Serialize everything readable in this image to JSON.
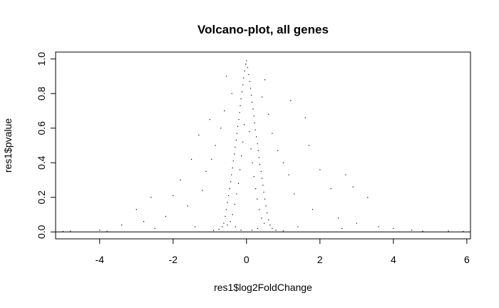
{
  "chart_data": {
    "type": "scatter",
    "title": "Volcano-plot, all genes",
    "xlabel": "res1$log2FoldChange",
    "ylabel": "res1$pvalue",
    "xlim": [
      -5.2,
      6.1
    ],
    "ylim": [
      -0.04,
      1.04
    ],
    "xticks": [
      -4,
      -2,
      0,
      2,
      4,
      6
    ],
    "yticks": [
      0.0,
      0.2,
      0.4,
      0.6,
      0.8,
      1.0
    ],
    "xtick_labels": [
      "-4",
      "-2",
      "0",
      "2",
      "4",
      "6"
    ],
    "ytick_labels": [
      "0.0",
      "0.2",
      "0.4",
      "0.6",
      "0.8",
      "1.0"
    ],
    "grid": false,
    "legend": "none",
    "reference_line": {
      "y": 0
    },
    "point_color": "#000000",
    "series": [
      {
        "points": [
          [
            0.0,
            0.99
          ],
          [
            -0.02,
            0.97
          ],
          [
            0.03,
            0.95
          ],
          [
            -0.05,
            0.93
          ],
          [
            0.06,
            0.91
          ],
          [
            -0.08,
            0.89
          ],
          [
            0.09,
            0.87
          ],
          [
            -0.1,
            0.85
          ],
          [
            0.11,
            0.83
          ],
          [
            -0.12,
            0.81
          ],
          [
            0.13,
            0.79
          ],
          [
            -0.15,
            0.77
          ],
          [
            0.15,
            0.75
          ],
          [
            -0.17,
            0.73
          ],
          [
            0.18,
            0.71
          ],
          [
            -0.19,
            0.69
          ],
          [
            0.2,
            0.67
          ],
          [
            -0.21,
            0.65
          ],
          [
            0.22,
            0.63
          ],
          [
            -0.24,
            0.61
          ],
          [
            0.24,
            0.59
          ],
          [
            -0.26,
            0.57
          ],
          [
            0.27,
            0.55
          ],
          [
            -0.28,
            0.53
          ],
          [
            0.3,
            0.51
          ],
          [
            -0.31,
            0.49
          ],
          [
            0.32,
            0.47
          ],
          [
            -0.33,
            0.45
          ],
          [
            0.34,
            0.43
          ],
          [
            -0.36,
            0.41
          ],
          [
            0.36,
            0.39
          ],
          [
            -0.38,
            0.37
          ],
          [
            0.4,
            0.35
          ],
          [
            -0.41,
            0.33
          ],
          [
            0.42,
            0.31
          ],
          [
            -0.43,
            0.29
          ],
          [
            0.45,
            0.27
          ],
          [
            -0.46,
            0.25
          ],
          [
            0.47,
            0.23
          ],
          [
            -0.49,
            0.21
          ],
          [
            0.5,
            0.19
          ],
          [
            -0.52,
            0.17
          ],
          [
            0.53,
            0.15
          ],
          [
            -0.55,
            0.13
          ],
          [
            0.56,
            0.11
          ],
          [
            -0.58,
            0.09
          ],
          [
            0.6,
            0.07
          ],
          [
            -0.62,
            0.05
          ],
          [
            0.64,
            0.04
          ],
          [
            -0.66,
            0.03
          ],
          [
            0.7,
            0.02
          ],
          [
            -0.75,
            0.015
          ],
          [
            0.8,
            0.01
          ],
          [
            -0.9,
            0.008
          ],
          [
            1.0,
            0.006
          ],
          [
            -0.06,
            0.62
          ],
          [
            0.08,
            0.58
          ],
          [
            -0.1,
            0.52
          ],
          [
            0.12,
            0.48
          ],
          [
            -0.14,
            0.44
          ],
          [
            0.16,
            0.4
          ],
          [
            -0.18,
            0.36
          ],
          [
            0.2,
            0.32
          ],
          [
            -0.22,
            0.28
          ],
          [
            0.25,
            0.25
          ],
          [
            -0.27,
            0.22
          ],
          [
            0.29,
            0.19
          ],
          [
            -0.32,
            0.16
          ],
          [
            0.35,
            0.13
          ],
          [
            -0.38,
            0.1
          ],
          [
            0.41,
            0.08
          ],
          [
            -0.44,
            0.06
          ],
          [
            0.48,
            0.05
          ],
          [
            -0.52,
            0.04
          ],
          [
            -0.55,
            0.9
          ],
          [
            0.5,
            0.88
          ],
          [
            -0.4,
            0.8
          ],
          [
            0.42,
            0.78
          ],
          [
            -0.6,
            0.7
          ],
          [
            0.6,
            0.68
          ],
          [
            -0.7,
            0.6
          ],
          [
            0.7,
            0.57
          ],
          [
            -0.85,
            0.5
          ],
          [
            0.85,
            0.47
          ],
          [
            -0.95,
            0.42
          ],
          [
            1.0,
            0.4
          ],
          [
            -1.1,
            0.35
          ],
          [
            1.15,
            0.33
          ],
          [
            1.2,
            0.76
          ],
          [
            1.6,
            0.66
          ],
          [
            -1.3,
            0.56
          ],
          [
            -1.0,
            0.65
          ],
          [
            1.7,
            0.5
          ],
          [
            -1.5,
            0.42
          ],
          [
            -1.8,
            0.3
          ],
          [
            2.0,
            0.36
          ],
          [
            -2.0,
            0.21
          ],
          [
            2.3,
            0.25
          ],
          [
            -2.6,
            0.2
          ],
          [
            2.7,
            0.33
          ],
          [
            -3.0,
            0.13
          ],
          [
            3.3,
            0.2
          ],
          [
            2.9,
            0.26
          ],
          [
            -1.2,
            0.24
          ],
          [
            1.3,
            0.22
          ],
          [
            -1.6,
            0.15
          ],
          [
            1.8,
            0.13
          ],
          [
            -2.2,
            0.09
          ],
          [
            2.5,
            0.08
          ],
          [
            -2.8,
            0.06
          ],
          [
            3.0,
            0.05
          ],
          [
            3.6,
            0.03
          ],
          [
            -3.4,
            0.04
          ],
          [
            4.0,
            0.02
          ],
          [
            -4.0,
            0.01
          ],
          [
            4.5,
            0.01
          ],
          [
            -0.3,
            0.03
          ],
          [
            0.3,
            0.02
          ],
          [
            -0.15,
            0.01
          ],
          [
            0.15,
            0.01
          ],
          [
            -1.4,
            0.03
          ],
          [
            1.4,
            0.03
          ],
          [
            -2.5,
            0.02
          ],
          [
            2.6,
            0.02
          ],
          [
            -4.8,
            0.005
          ],
          [
            5.5,
            0.005
          ],
          [
            -3.8,
            0.004
          ],
          [
            4.8,
            0.004
          ],
          [
            5.9,
            0.003
          ],
          [
            -5.0,
            0.003
          ]
        ]
      }
    ]
  }
}
